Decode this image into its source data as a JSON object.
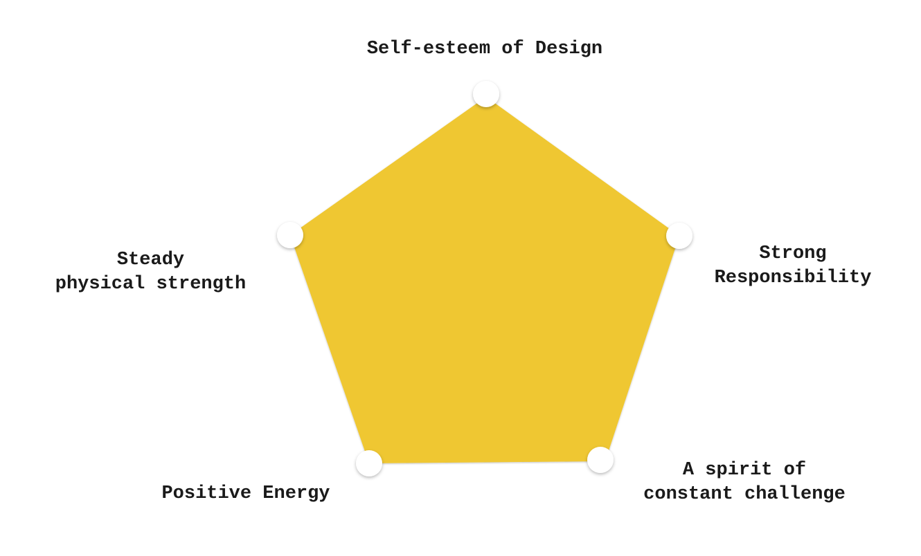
{
  "diagram": {
    "shape": "pentagon",
    "fill_color": "#efc733",
    "node_color": "#ffffff",
    "labels": {
      "top": "Self-esteem of Design",
      "right": [
        "Strong",
        "Responsibility"
      ],
      "left": [
        "Steady",
        "physical strength"
      ],
      "bottom_right": [
        "A spirit of",
        "constant challenge"
      ],
      "bottom_left": "Positive Energy"
    }
  }
}
